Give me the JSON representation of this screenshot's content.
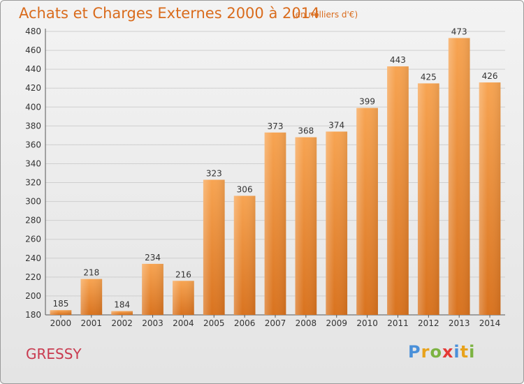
{
  "chart_data": {
    "type": "bar",
    "title": "Achats et Charges Externes 2000 à 2014",
    "subtitle": "(en milliers d'€)",
    "categories": [
      "2000",
      "2001",
      "2002",
      "2003",
      "2004",
      "2005",
      "2006",
      "2007",
      "2008",
      "2009",
      "2010",
      "2011",
      "2012",
      "2013",
      "2014"
    ],
    "values": [
      185,
      218,
      184,
      234,
      216,
      323,
      306,
      373,
      368,
      374,
      399,
      443,
      425,
      473,
      426
    ],
    "ylim": [
      180,
      480
    ],
    "yticks": [
      180,
      200,
      220,
      240,
      260,
      280,
      300,
      320,
      340,
      360,
      380,
      400,
      420,
      440,
      460,
      480
    ],
    "grid": true,
    "bar_color": "#f0903a"
  },
  "footer": {
    "commune": "GRESSY",
    "logo": "Proxiti"
  }
}
